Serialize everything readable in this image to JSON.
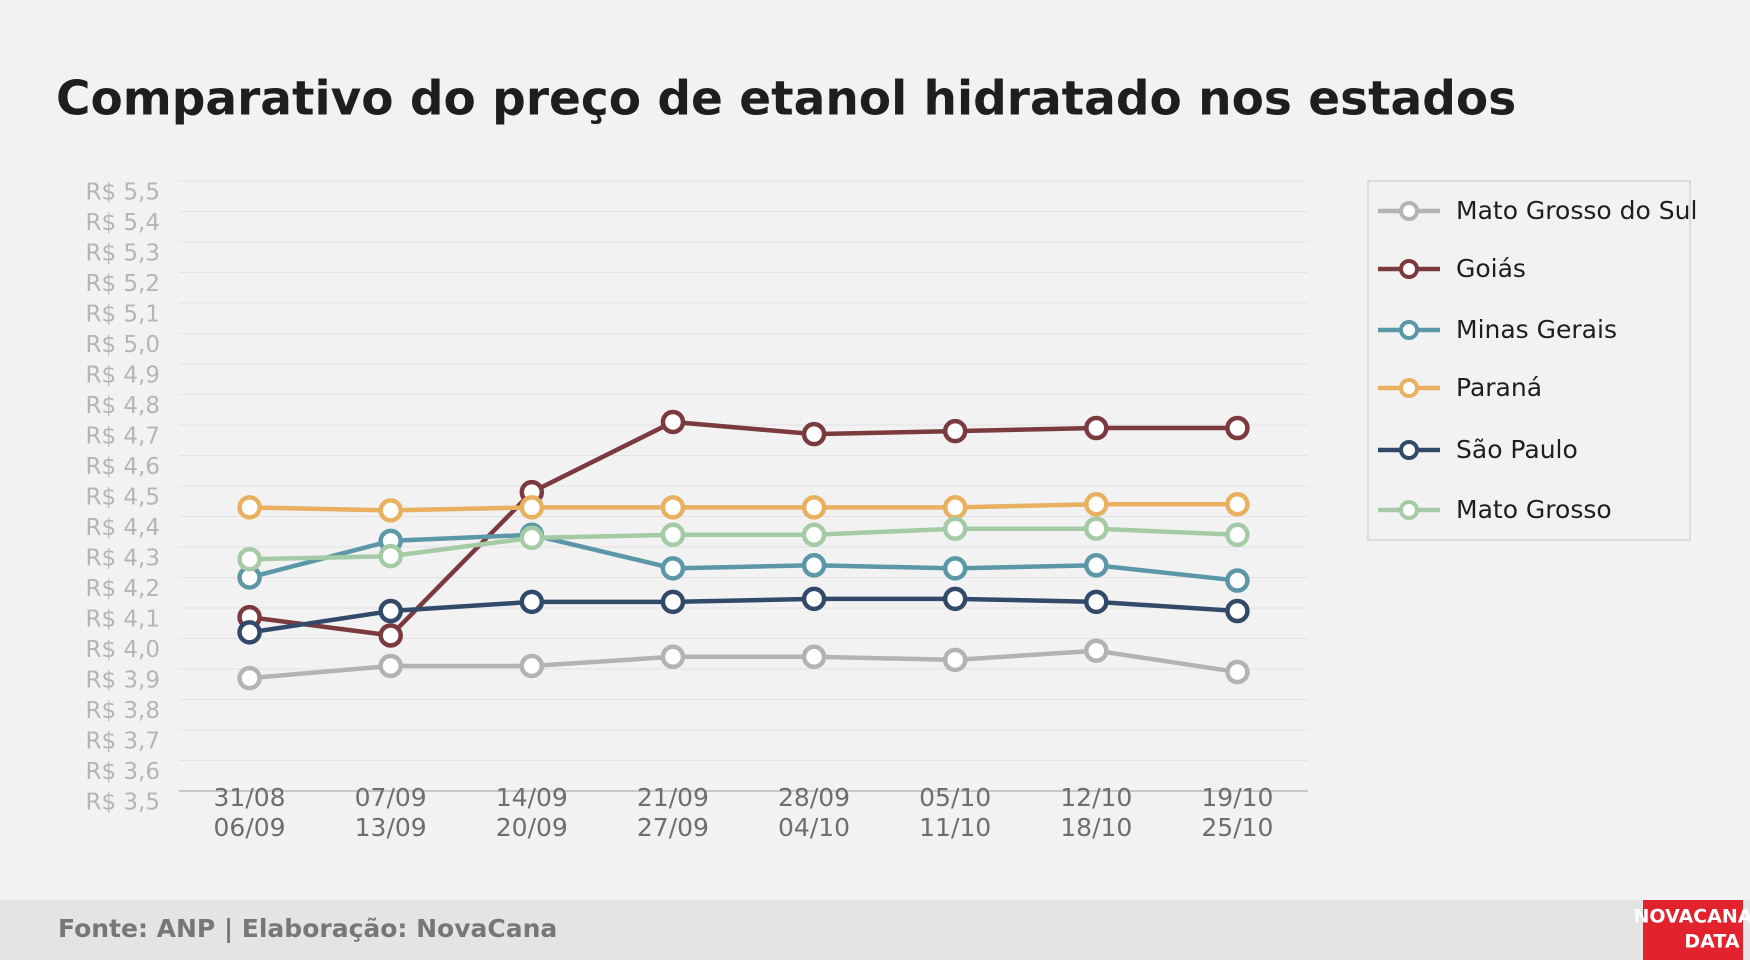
{
  "chart_data": {
    "type": "line",
    "title": "Comparativo do preço de etanol hidratado nos estados",
    "categories": [
      "31/08\n06/09",
      "07/09\n13/09",
      "14/09\n20/09",
      "21/09\n27/09",
      "28/09\n04/10",
      "05/10\n11/10",
      "12/10\n18/10",
      "19/10\n25/10"
    ],
    "series": [
      {
        "name": "Mato Grosso do Sul",
        "color": "#b3b3b3",
        "values": [
          3.87,
          3.91,
          3.91,
          3.94,
          3.94,
          3.93,
          3.96,
          3.89
        ]
      },
      {
        "name": "Goiás",
        "color": "#7b3b3e",
        "values": [
          4.07,
          4.01,
          4.48,
          4.71,
          4.67,
          4.68,
          4.69,
          4.69
        ]
      },
      {
        "name": "Minas Gerais",
        "color": "#5b97a6",
        "values": [
          4.2,
          4.32,
          4.34,
          4.23,
          4.24,
          4.23,
          4.24,
          4.19
        ]
      },
      {
        "name": "Paraná",
        "color": "#e9b060",
        "values": [
          4.43,
          4.42,
          4.43,
          4.43,
          4.43,
          4.43,
          4.44,
          4.44
        ]
      },
      {
        "name": "São Paulo",
        "color": "#324a69",
        "values": [
          4.02,
          4.09,
          4.12,
          4.12,
          4.13,
          4.13,
          4.12,
          4.09
        ]
      },
      {
        "name": "Mato Grosso",
        "color": "#a5cba6",
        "values": [
          4.26,
          4.27,
          4.33,
          4.34,
          4.34,
          4.36,
          4.36,
          4.34
        ]
      }
    ],
    "ylim": [
      3.5,
      5.5
    ],
    "yticks": [
      {
        "value": 3.5,
        "label": "R$ 3,5"
      },
      {
        "value": 3.6,
        "label": "R$ 3,6"
      },
      {
        "value": 3.7,
        "label": "R$ 3,7"
      },
      {
        "value": 3.8,
        "label": "R$ 3,8"
      },
      {
        "value": 3.9,
        "label": "R$ 3,9"
      },
      {
        "value": 4.0,
        "label": "R$ 4,0"
      },
      {
        "value": 4.1,
        "label": "R$ 4,1"
      },
      {
        "value": 4.2,
        "label": "R$ 4,2"
      },
      {
        "value": 4.3,
        "label": "R$ 4,3"
      },
      {
        "value": 4.4,
        "label": "R$ 4,4"
      },
      {
        "value": 4.5,
        "label": "R$ 4,5"
      },
      {
        "value": 4.6,
        "label": "R$ 4,6"
      },
      {
        "value": 4.7,
        "label": "R$ 4,7"
      },
      {
        "value": 4.8,
        "label": "R$ 4,8"
      },
      {
        "value": 4.9,
        "label": "R$ 4,9"
      },
      {
        "value": 5.0,
        "label": "R$ 5,0"
      },
      {
        "value": 5.1,
        "label": "R$ 5,1"
      },
      {
        "value": 5.2,
        "label": "R$ 5,2"
      },
      {
        "value": 5.3,
        "label": "R$ 5,3"
      },
      {
        "value": 5.4,
        "label": "R$ 5,4"
      },
      {
        "value": 5.5,
        "label": "R$ 5,5"
      }
    ],
    "grid": true,
    "legend": "right",
    "source": "Fonte: ANP | Elaboração: NovaCana",
    "logo": [
      "NOVACANA",
      "DATA"
    ]
  }
}
